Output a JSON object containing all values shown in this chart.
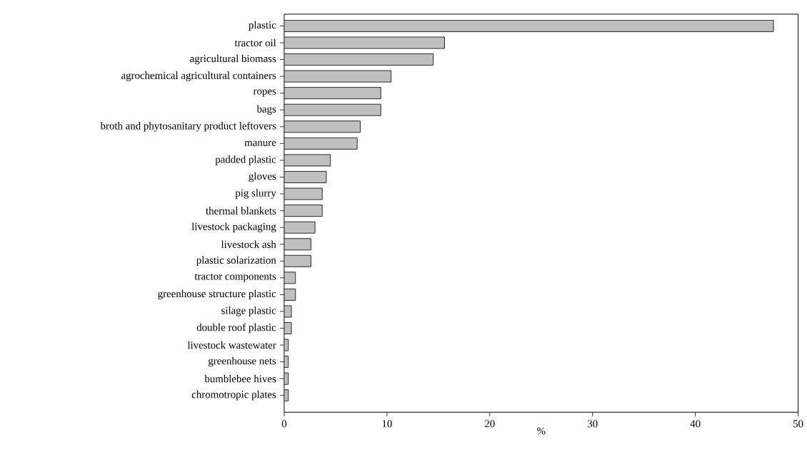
{
  "chart_data": {
    "type": "bar",
    "orientation": "horizontal",
    "xlabel": "%",
    "categories": [
      "plastic",
      "tractor oil",
      "agricultural biomass",
      "agrochemical agricultural containers",
      "ropes",
      "bags",
      "broth and phytosanitary product leftovers",
      "manure",
      "padded plastic",
      "gloves",
      "pig slurry",
      "thermal blankets",
      "livestock packaging",
      "livestock ash",
      "plastic solarization",
      "tractor components",
      "greenhouse structure plastic",
      "silage plastic",
      "double roof plastic",
      "livestock wastewater",
      "greenhouse nets",
      "bumblebee hives",
      "chromotropic plates"
    ],
    "values": [
      47.6,
      15.6,
      14.5,
      10.4,
      9.4,
      9.4,
      7.4,
      7.1,
      4.5,
      4.1,
      3.7,
      3.7,
      3.0,
      2.6,
      2.6,
      1.1,
      1.1,
      0.7,
      0.7,
      0.4,
      0.4,
      0.4,
      0.4
    ],
    "color": "#c0c0c0",
    "xlim": [
      0,
      50
    ],
    "xticks": [
      0,
      10,
      20,
      30,
      40,
      50
    ]
  }
}
